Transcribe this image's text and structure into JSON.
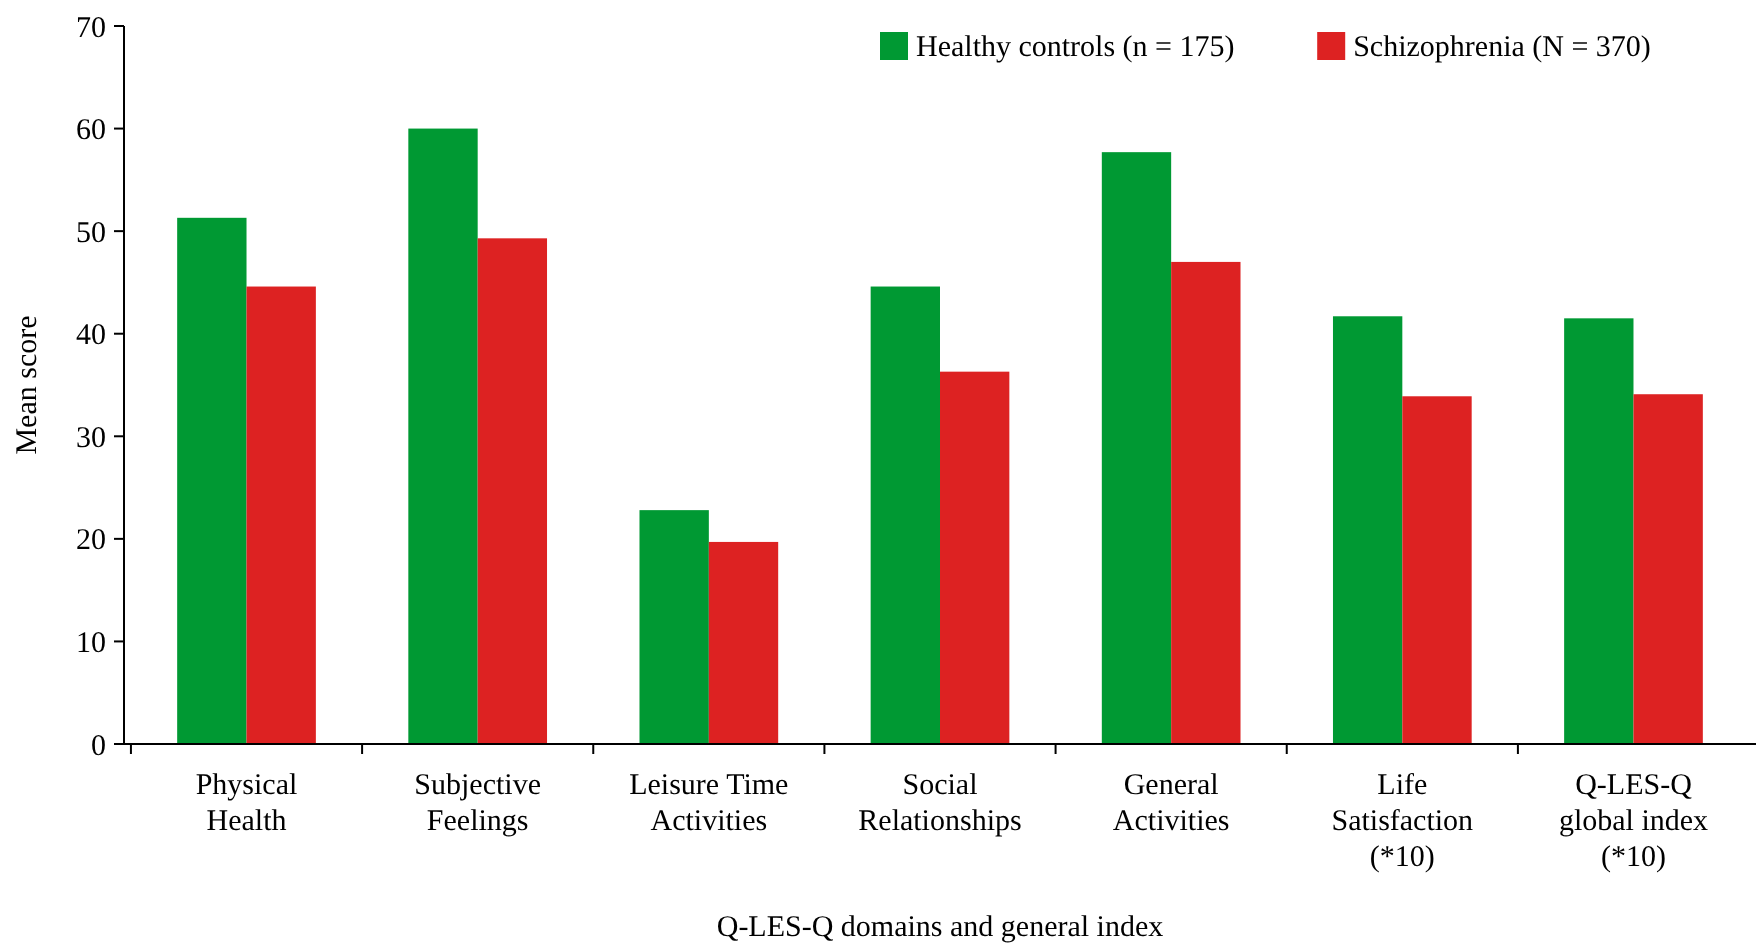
{
  "chart_data": {
    "type": "bar",
    "xlabel": "Q-LES-Q domains and general index",
    "ylabel": "Mean score",
    "categories": [
      "Physical\nHealth",
      "Subjective\nFeelings",
      "Leisure Time\nActivities",
      "Social\nRelationships",
      "General\nActivities",
      "Life\nSatisfaction\n(*10)",
      "Q-LES-Q\nglobal index\n(*10)"
    ],
    "series": [
      {
        "name": "Healthy controls (n = 175)",
        "color": "#009933",
        "values": [
          51.3,
          60.0,
          22.8,
          44.6,
          57.7,
          41.7,
          41.5
        ]
      },
      {
        "name": "Schizophrenia (N = 370)",
        "color": "#dd2222",
        "values": [
          44.6,
          49.3,
          19.7,
          36.3,
          47.0,
          33.9,
          34.1
        ]
      }
    ],
    "ylim": [
      0,
      70
    ],
    "yticks": [
      0,
      10,
      20,
      30,
      40,
      50,
      60,
      70
    ],
    "grid": false,
    "legend": "top right"
  }
}
